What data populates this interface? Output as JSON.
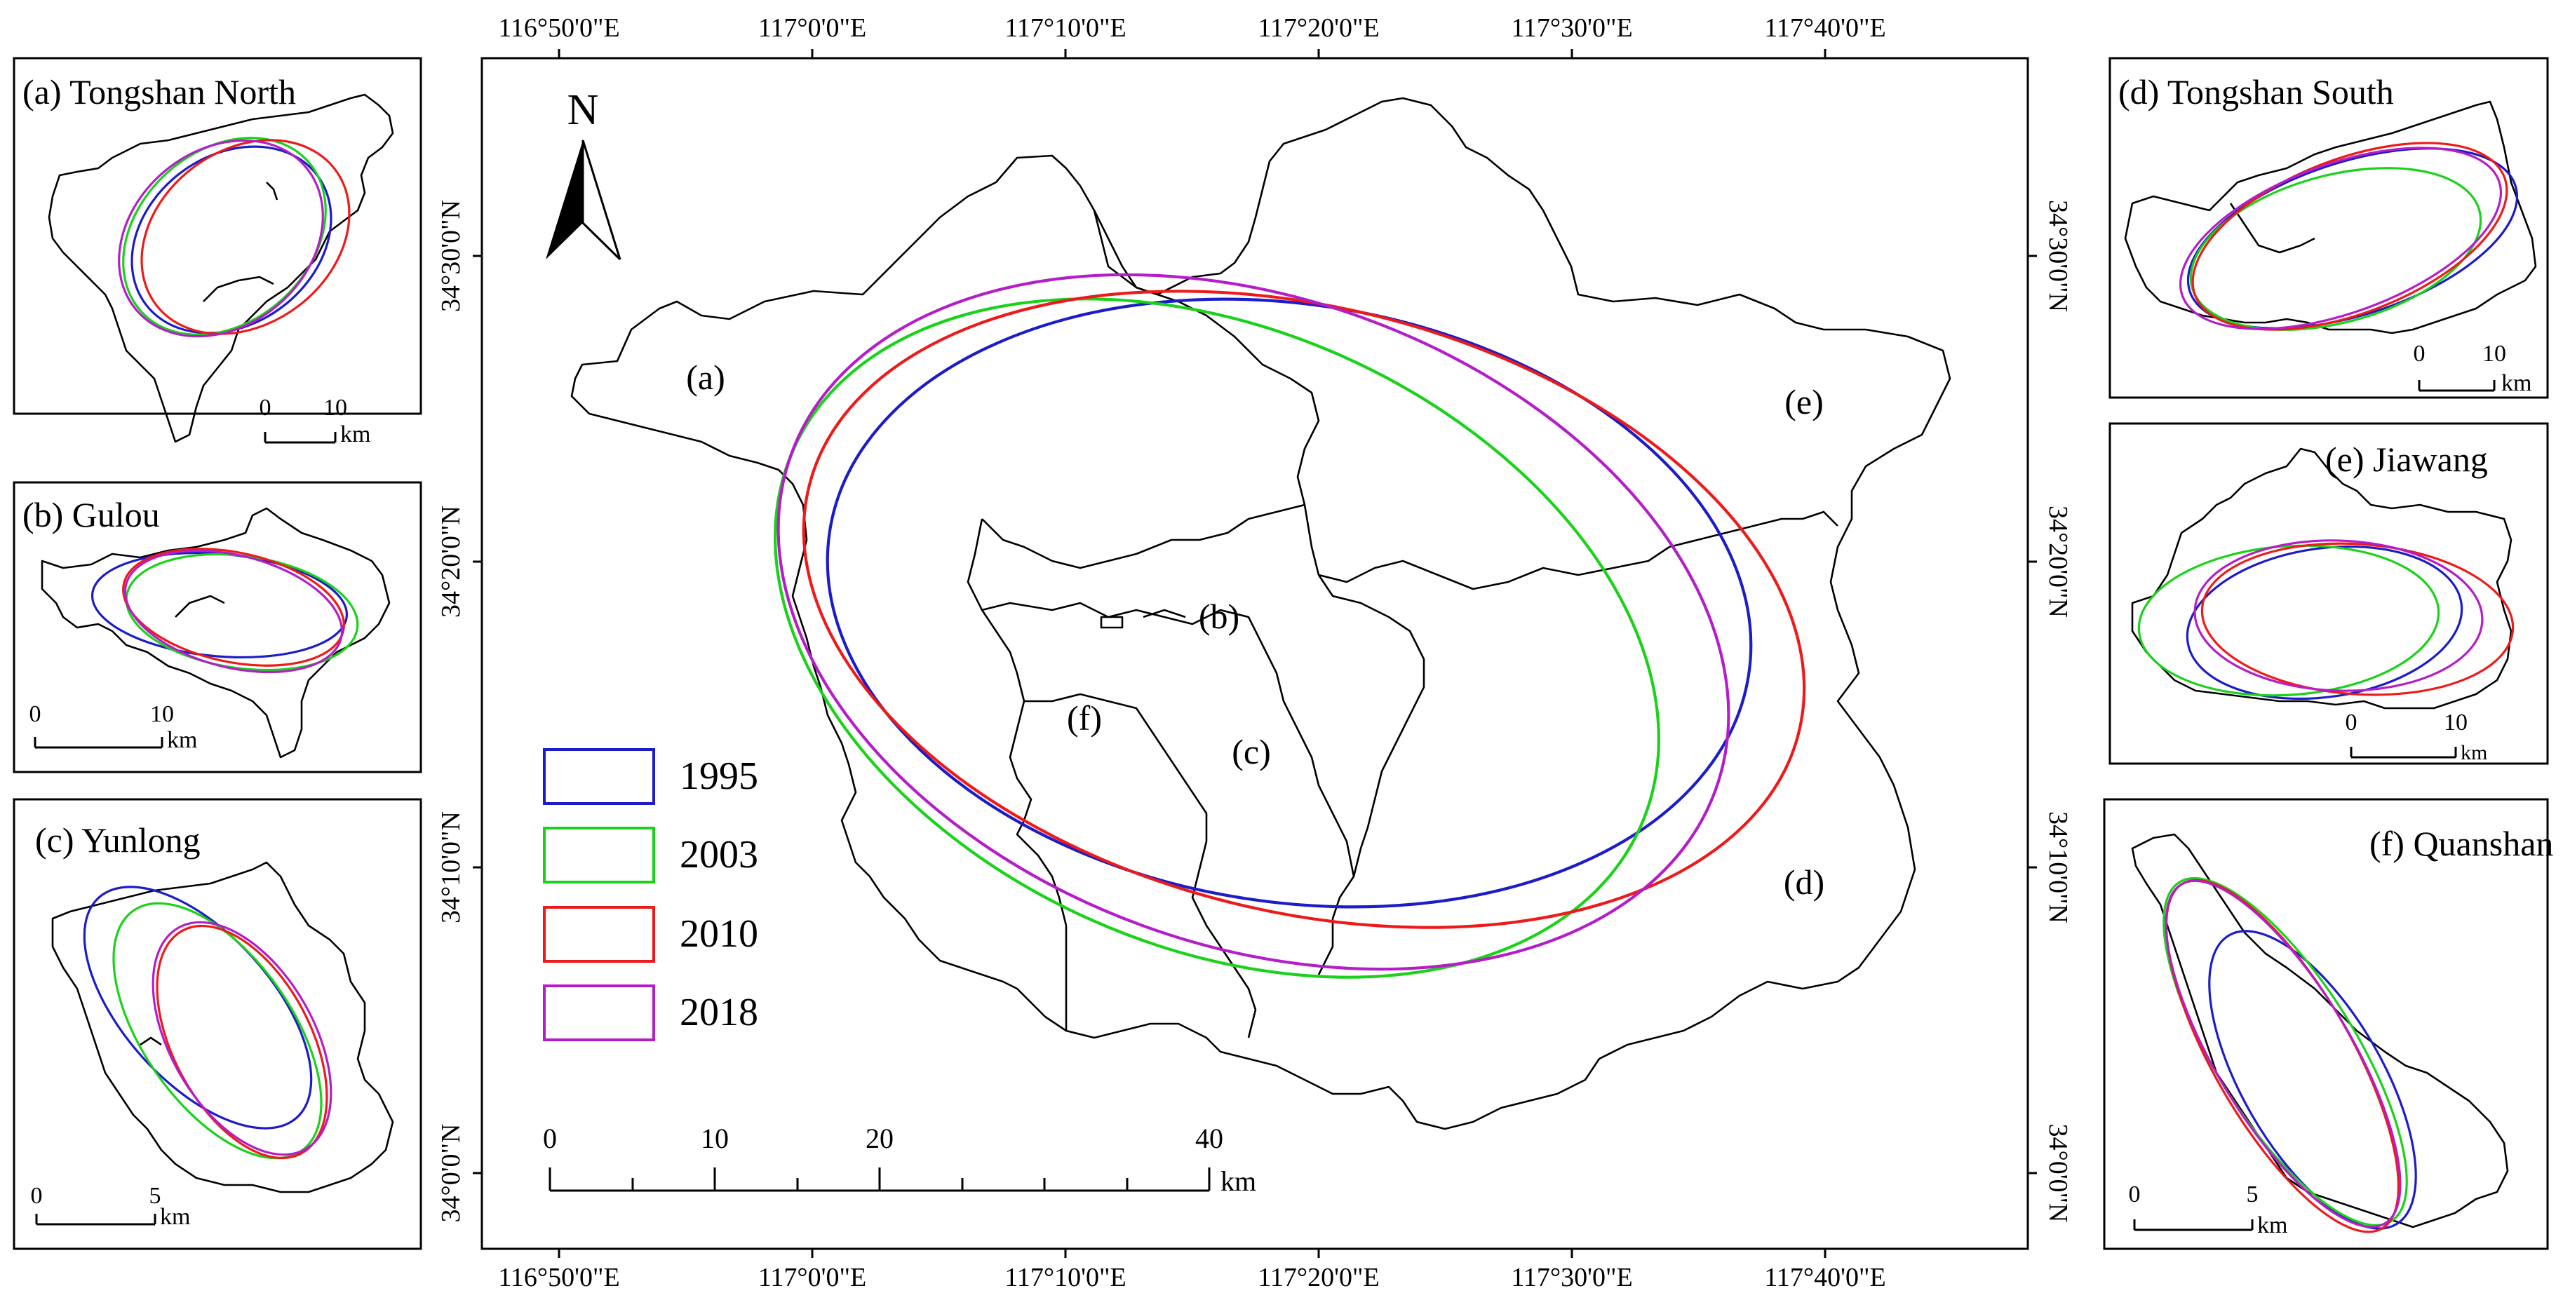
{
  "colors": {
    "1995": "#1c1cc8",
    "2003": "#19d219",
    "2010": "#ee1a1a",
    "2018": "#b41ec8"
  },
  "main_map": {
    "top_ticks": [
      "116°50'0\"E",
      "117°0'0\"E",
      "117°10'0\"E",
      "117°20'0\"E",
      "117°30'0\"E",
      "117°40'0\"E"
    ],
    "bottom_ticks": [
      "116°50'0\"E",
      "117°0'0\"E",
      "117°10'0\"E",
      "117°20'0\"E",
      "117°30'0\"E",
      "117°40'0\"E"
    ],
    "left_ticks": [
      "34°30'0\"N",
      "34°20'0\"N",
      "34°10'0\"N",
      "34°0'0\"N"
    ],
    "right_ticks": [
      "34°30'0\"N",
      "34°20'0\"N",
      "34°10'0\"N",
      "34°0'0\"N"
    ],
    "north_label": "N",
    "district_labels": [
      "(a)",
      "(b)",
      "(c)",
      "(d)",
      "(e)",
      "(f)"
    ],
    "legend": [
      "1995",
      "2003",
      "2010",
      "2018"
    ],
    "scale": {
      "ticks": [
        "0",
        "10",
        "20",
        "40"
      ],
      "unit": "km"
    }
  },
  "insets": [
    {
      "title": "(a) Tongshan North",
      "scale_ticks": [
        "0",
        "10"
      ],
      "unit": "km"
    },
    {
      "title": "(b) Gulou",
      "scale_ticks": [
        "0",
        "10"
      ],
      "unit": "km"
    },
    {
      "title": "(c) Yunlong",
      "scale_ticks": [
        "0",
        "5"
      ],
      "unit": "km"
    },
    {
      "title": "(d) Tongshan South",
      "scale_ticks": [
        "0",
        "10"
      ],
      "unit": "km"
    },
    {
      "title": "(e) Jiawang",
      "scale_ticks": [
        "0",
        "10"
      ],
      "unit": "km"
    },
    {
      "title": "(f) Quanshan",
      "scale_ticks": [
        "0",
        "5"
      ],
      "unit": "km"
    }
  ]
}
